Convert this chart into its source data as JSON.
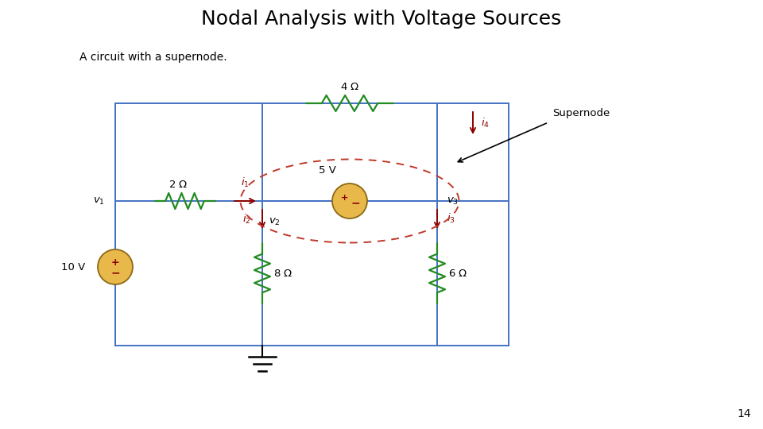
{
  "title": "Nodal Analysis with Voltage Sources",
  "subtitle": "A circuit with a supernode.",
  "page_number": "14",
  "background_color": "#ffffff",
  "wire_color": "#4472c4",
  "resistor_color": "#228B22",
  "source_color": "#DAA520",
  "current_arrow_color": "#8B0000",
  "supernode_ellipse_color": "#C0392B",
  "annotation_color": "#000000",
  "lw_wire": 1.4,
  "lw_res": 1.6
}
